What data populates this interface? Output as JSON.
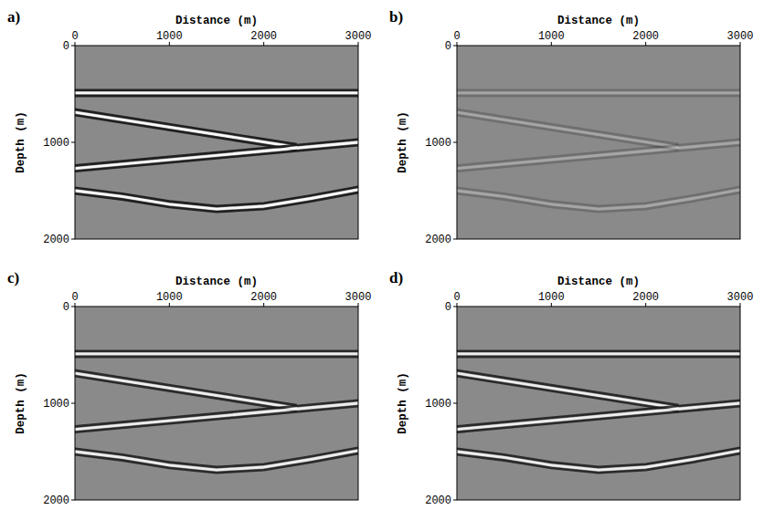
{
  "chart_data": [
    {
      "type": "seismic",
      "title": "a)",
      "xlabel": "Distance (m)",
      "ylabel": "Depth (m)",
      "xlim": [
        0,
        3000
      ],
      "ylim": [
        0,
        2000
      ],
      "xticks": [
        0,
        1000,
        2000,
        3000
      ],
      "yticks": [
        0,
        1000,
        2000
      ],
      "amplitude": 1.0,
      "events": [
        {
          "x": [
            0,
            3000
          ],
          "depth": [
            490,
            490
          ]
        },
        {
          "x": [
            0,
            2350
          ],
          "depth": [
            690,
            1050
          ]
        },
        {
          "x": [
            0,
            3000
          ],
          "depth": [
            1270,
            1000
          ]
        },
        {
          "x": [
            0,
            500,
            1000,
            1500,
            2000,
            2500,
            3000
          ],
          "depth": [
            1500,
            1560,
            1640,
            1690,
            1660,
            1580,
            1490
          ]
        }
      ]
    },
    {
      "type": "seismic",
      "title": "b)",
      "xlabel": "Distance (m)",
      "ylabel": "Depth (m)",
      "xlim": [
        0,
        3000
      ],
      "ylim": [
        0,
        2000
      ],
      "xticks": [
        0,
        1000,
        2000,
        3000
      ],
      "yticks": [
        0,
        1000,
        2000
      ],
      "amplitude": 0.25,
      "events": [
        {
          "x": [
            0,
            3000
          ],
          "depth": [
            490,
            490
          ]
        },
        {
          "x": [
            0,
            2350
          ],
          "depth": [
            690,
            1050
          ]
        },
        {
          "x": [
            0,
            3000
          ],
          "depth": [
            1270,
            1000
          ]
        },
        {
          "x": [
            0,
            500,
            1000,
            1500,
            2000,
            2500,
            3000
          ],
          "depth": [
            1500,
            1560,
            1640,
            1690,
            1660,
            1580,
            1490
          ]
        }
      ]
    },
    {
      "type": "seismic",
      "title": "c)",
      "xlabel": "Distance (m)",
      "ylabel": "Depth (m)",
      "xlim": [
        0,
        3000
      ],
      "ylim": [
        0,
        2000
      ],
      "xticks": [
        0,
        1000,
        2000,
        3000
      ],
      "yticks": [
        0,
        1000,
        2000
      ],
      "amplitude": 0.9,
      "events": [
        {
          "x": [
            0,
            3000
          ],
          "depth": [
            490,
            490
          ]
        },
        {
          "x": [
            0,
            2350
          ],
          "depth": [
            690,
            1050
          ]
        },
        {
          "x": [
            0,
            3000
          ],
          "depth": [
            1270,
            1000
          ]
        },
        {
          "x": [
            0,
            500,
            1000,
            1500,
            2000,
            2500,
            3000
          ],
          "depth": [
            1500,
            1560,
            1640,
            1690,
            1660,
            1580,
            1490
          ]
        }
      ]
    },
    {
      "type": "seismic",
      "title": "d)",
      "xlabel": "Distance (m)",
      "ylabel": "Depth (m)",
      "xlim": [
        0,
        3000
      ],
      "ylim": [
        0,
        2000
      ],
      "xticks": [
        0,
        1000,
        2000,
        3000
      ],
      "yticks": [
        0,
        1000,
        2000
      ],
      "amplitude": 0.9,
      "events": [
        {
          "x": [
            0,
            3000
          ],
          "depth": [
            490,
            490
          ]
        },
        {
          "x": [
            0,
            2350
          ],
          "depth": [
            690,
            1050
          ]
        },
        {
          "x": [
            0,
            3000
          ],
          "depth": [
            1270,
            1000
          ]
        },
        {
          "x": [
            0,
            500,
            1000,
            1500,
            2000,
            2500,
            3000
          ],
          "depth": [
            1500,
            1560,
            1640,
            1690,
            1660,
            1580,
            1490
          ]
        }
      ]
    }
  ]
}
